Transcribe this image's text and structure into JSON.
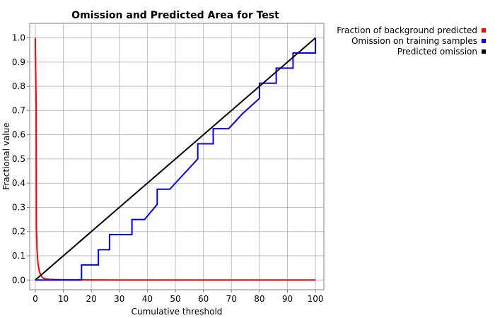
{
  "chart_data": {
    "type": "line",
    "title": "Omission and Predicted Area for Test",
    "xlabel": "Cumulative threshold",
    "ylabel": "Fractional value",
    "xlim": [
      -2,
      103
    ],
    "ylim": [
      -0.04,
      1.06
    ],
    "xticks": [
      0,
      10,
      20,
      30,
      40,
      50,
      60,
      70,
      80,
      90,
      100
    ],
    "yticks": [
      0.0,
      0.1,
      0.2,
      0.3,
      0.4,
      0.5,
      0.6,
      0.7,
      0.8,
      0.9,
      1.0
    ],
    "xtick_labels": [
      "0",
      "10",
      "20",
      "30",
      "40",
      "50",
      "60",
      "70",
      "80",
      "90",
      "100"
    ],
    "ytick_labels": [
      "0.0",
      "0.1",
      "0.2",
      "0.3",
      "0.4",
      "0.5",
      "0.6",
      "0.7",
      "0.8",
      "0.9",
      "1.0"
    ],
    "grid": true,
    "legend_position": "top-right-outside",
    "series": [
      {
        "name": "Fraction of background predicted",
        "color": "#ff0000",
        "x": [
          0,
          0.3,
          0.4,
          0.6,
          0.8,
          1.0,
          1.3,
          1.6,
          2.0,
          2.5,
          3.0,
          4.0,
          5.0,
          7.0,
          10.0,
          15.0,
          20.0,
          30.0,
          40.0,
          60.0,
          80.0,
          100.0
        ],
        "y": [
          1.0,
          0.72,
          0.22,
          0.13,
          0.09,
          0.065,
          0.045,
          0.03,
          0.02,
          0.012,
          0.007,
          0.004,
          0.003,
          0.002,
          0.001,
          0.001,
          0.0005,
          0.0003,
          0.0002,
          0.0001,
          0.0,
          0.0
        ]
      },
      {
        "name": "Omission on training samples",
        "color": "#0000ff",
        "x": [
          0,
          16.5,
          16.5,
          22.5,
          22.5,
          26.5,
          26.5,
          34.5,
          34.5,
          39.0,
          43.5,
          43.5,
          48.0,
          53.0,
          58.0,
          58.0,
          63.5,
          63.5,
          69.0,
          74.0,
          80.0,
          80.0,
          86.0,
          86.0,
          92.0,
          92.0,
          100.0,
          100.0
        ],
        "y": [
          0.0,
          0.0,
          0.0625,
          0.0625,
          0.125,
          0.125,
          0.1875,
          0.1875,
          0.25,
          0.25,
          0.3125,
          0.375,
          0.375,
          0.4375,
          0.5,
          0.5625,
          0.5625,
          0.625,
          0.625,
          0.6875,
          0.75,
          0.8125,
          0.8125,
          0.875,
          0.875,
          0.9375,
          0.9375,
          1.0
        ]
      },
      {
        "name": "Predicted omission",
        "color": "#000000",
        "x": [
          0,
          100
        ],
        "y": [
          0,
          1.0
        ]
      }
    ]
  }
}
